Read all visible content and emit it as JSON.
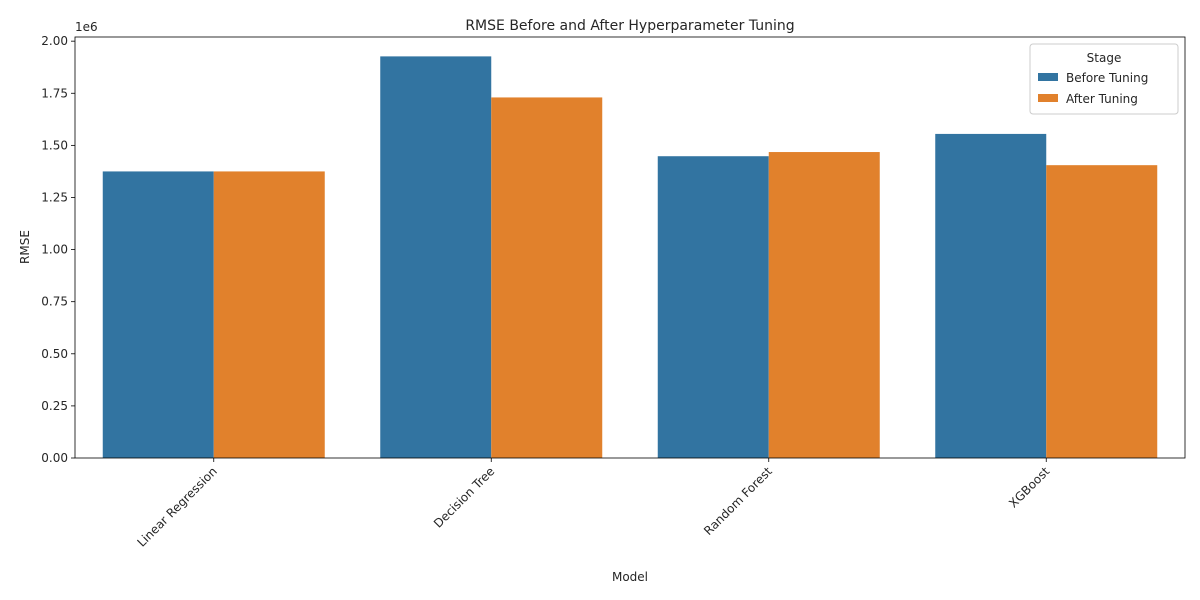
{
  "chart_data": {
    "type": "bar",
    "title": "RMSE Before and After Hyperparameter Tuning",
    "xlabel": "Model",
    "ylabel": "RMSE",
    "y_offset_label": "1e6",
    "y_scale": 1000000,
    "categories": [
      "Linear Regression",
      "Decision Tree",
      "Random Forest",
      "XGBoost"
    ],
    "series": [
      {
        "name": "Before Tuning",
        "color": "#3274a1",
        "values": [
          1375000,
          1927000,
          1448000,
          1555000
        ]
      },
      {
        "name": "After Tuning",
        "color": "#e1812c",
        "values": [
          1375000,
          1730000,
          1468000,
          1405000
        ]
      }
    ],
    "ylim": [
      0,
      2020000
    ],
    "yticks": [
      0,
      250000,
      500000,
      750000,
      1000000,
      1250000,
      1500000,
      1750000,
      2000000
    ],
    "ytick_labels": [
      "0.00",
      "0.25",
      "0.50",
      "0.75",
      "1.00",
      "1.25",
      "1.50",
      "1.75",
      "2.00"
    ],
    "xtick_rotation": 45,
    "grid": false,
    "legend": {
      "title": "Stage",
      "placement": "top-right"
    }
  }
}
